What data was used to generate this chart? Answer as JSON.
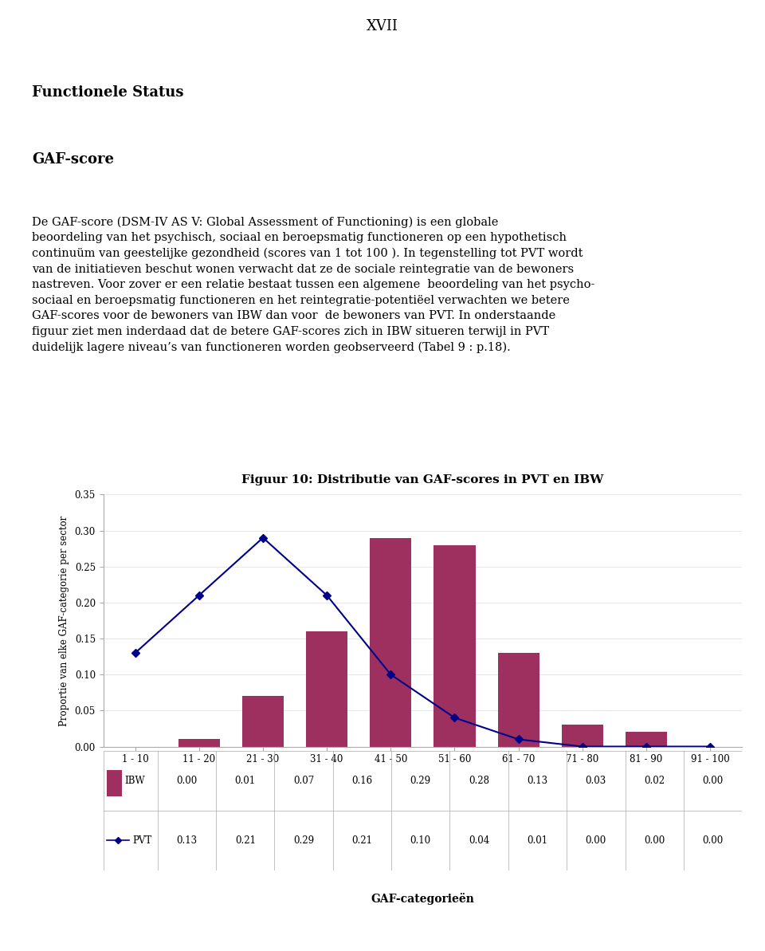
{
  "page_number": "XVII",
  "heading1": "Functionele Status",
  "heading2": "GAF-score",
  "body_lines": [
    "De GAF-score (DSM-IV AS V: Global Assessment of Functioning) is een globale",
    "beoordeling van het psychisch, sociaal en beroepsmatig functioneren op een hypothetisch",
    "continuüm van geestelijke gezondheid (scores van 1 tot 100 ). In tegenstelling tot PVT wordt",
    "van de initiatieven beschut wonen verwacht dat ze de sociale reintegratie van de bewoners",
    "nastreven. Voor zover er een relatie bestaat tussen een algemene  beoordeling van het psycho-",
    "sociaal en beroepsmatig functioneren en het reintegratie-potentiëel verwachten we betere",
    "GAF-scores voor de bewoners van IBW dan voor  de bewoners van PVT. In onderstaande",
    "figuur ziet men inderdaad dat de betere GAF-scores zich in IBW situeren terwijl in PVT",
    "duidelijk lagere niveau’s van functioneren worden geobserveerd (Tabel 9 : p.18)."
  ],
  "chart_title": "Figuur 10: Distributie van GAF-scores in PVT en IBW",
  "categories": [
    "1 - 10",
    "11 - 20",
    "21 - 30",
    "31 - 40",
    "41 - 50",
    "51 - 60",
    "61 - 70",
    "71 - 80",
    "81 - 90",
    "91 - 100"
  ],
  "IBW": [
    0.0,
    0.01,
    0.07,
    0.16,
    0.29,
    0.28,
    0.13,
    0.03,
    0.02,
    0.0
  ],
  "PVT": [
    0.13,
    0.21,
    0.29,
    0.21,
    0.1,
    0.04,
    0.01,
    0.0,
    0.0,
    0.0
  ],
  "bar_color": "#9e3060",
  "line_color": "#00008b",
  "marker_style": "D",
  "ylabel": "Proportie van elke GAF-categorie per sector",
  "xlabel": "GAF-categorieën",
  "ylim": [
    0.0,
    0.35
  ],
  "yticks": [
    0.0,
    0.05,
    0.1,
    0.15,
    0.2,
    0.25,
    0.3,
    0.35
  ],
  "legend_ibw_label": "IBW",
  "legend_pvt_label": "PVT",
  "background_color": "#ffffff",
  "text_color": "#000000"
}
